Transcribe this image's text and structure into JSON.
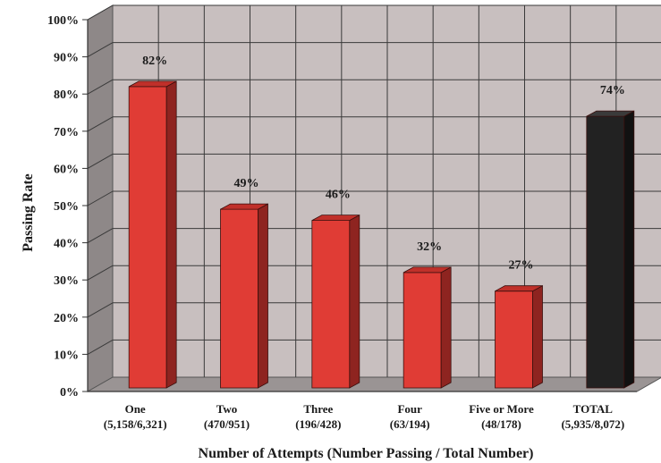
{
  "chart_data": {
    "type": "bar",
    "categories": [
      "One",
      "Two",
      "Three",
      "Four",
      "Five or More",
      "TOTAL"
    ],
    "category_sublabels": [
      "(5,158/6,321)",
      "(470/951)",
      "(196/428)",
      "(63/194)",
      "(48/178)",
      "(5,935/8,072)"
    ],
    "values": [
      82,
      49,
      46,
      32,
      27,
      74
    ],
    "data_labels": [
      "82%",
      "49%",
      "46%",
      "32%",
      "27%",
      "74%"
    ],
    "y_ticks": [
      "0%",
      "10%",
      "20%",
      "30%",
      "40%",
      "50%",
      "60%",
      "70%",
      "80%",
      "90%",
      "100%"
    ],
    "ylim": [
      0,
      100
    ],
    "xlabel": "Number of Attempts (Number Passing / Total Number)",
    "ylabel": "Passing Rate",
    "title": "",
    "grid": true,
    "style": "3d",
    "colors": {
      "bar": "#e03c35",
      "bar_side": "#8e2420",
      "bar_top": "#c0302a",
      "total_bar": "#222222",
      "total_side": "#111111",
      "total_top": "#3a3a3a",
      "plot_back": "#c8bfbf",
      "plot_wall": "#8e8888",
      "plot_floor": "#9a9494",
      "grid": "#3a3a3a"
    }
  }
}
